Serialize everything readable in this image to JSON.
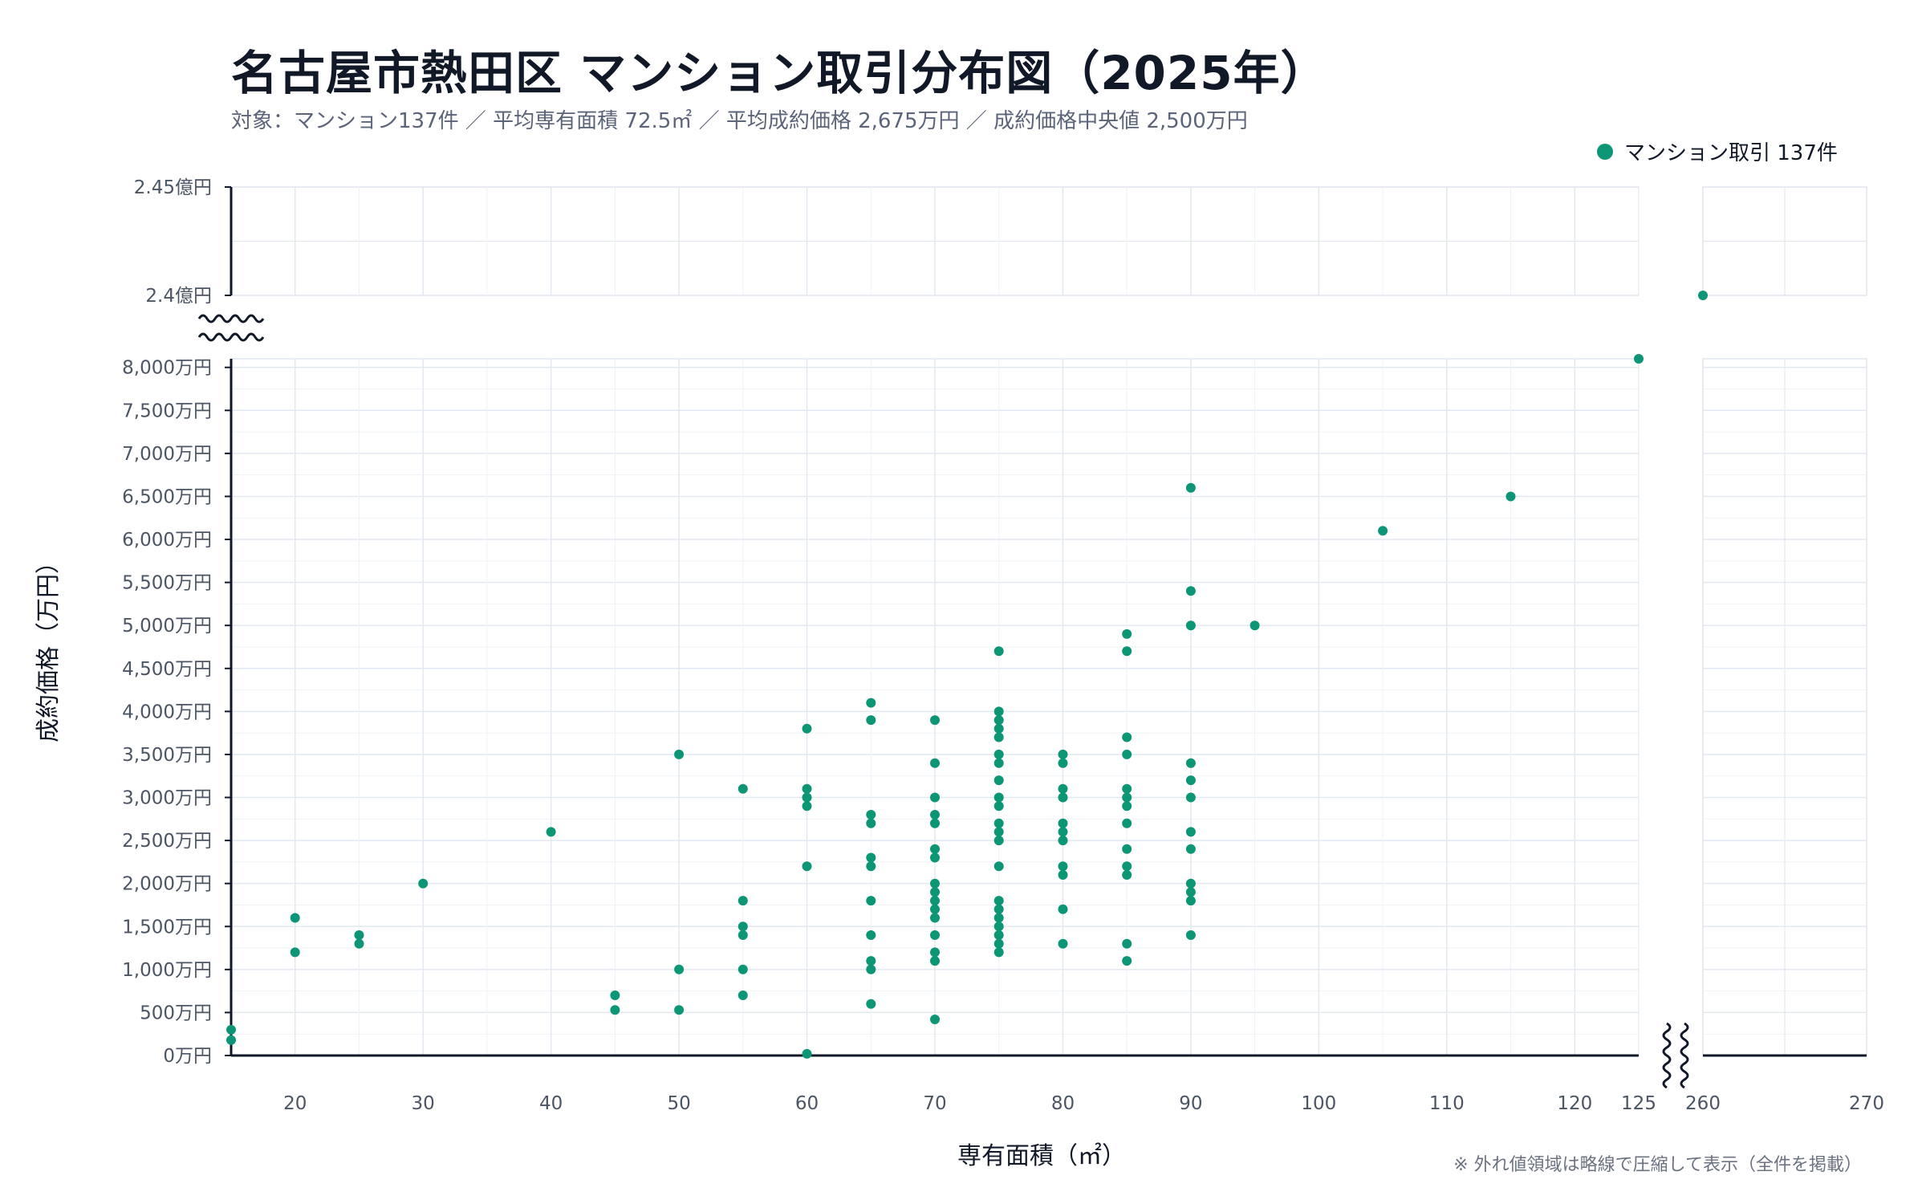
{
  "header": {
    "title": "名古屋市熱田区 マンション取引分布図（2025年）",
    "subtitle": "対象：マンション137件 ／ 平均専有面積 72.5㎡ ／ 平均成約価格 2,675万円 ／ 成約価格中央値 2,500万円"
  },
  "legend": {
    "label": "マンション取引 137件"
  },
  "colors": {
    "point": "#0d9676",
    "grid": "#e2e8f0",
    "axis": "#111827",
    "text": "#4b5563"
  },
  "chart_data": {
    "type": "scatter",
    "xlabel": "専有面積（㎡）",
    "ylabel": "成約価格（万円）",
    "note": "※ 外れ値領域は略線で圧縮して表示（全件を掲載）",
    "legend_position": "top-right",
    "grid": true,
    "x_main_range": [
      15,
      125
    ],
    "x_outlier_range": [
      260,
      270
    ],
    "y_main_range": [
      0,
      8100
    ],
    "y_outlier_range": [
      24000,
      24500
    ],
    "x_ticks": [
      20,
      30,
      40,
      50,
      60,
      70,
      80,
      90,
      100,
      110,
      120,
      125,
      260,
      270
    ],
    "y_ticks_main": [
      {
        "v": 0,
        "label": "0万円"
      },
      {
        "v": 500,
        "label": "500万円"
      },
      {
        "v": 1000,
        "label": "1,000万円"
      },
      {
        "v": 1500,
        "label": "1,500万円"
      },
      {
        "v": 2000,
        "label": "2,000万円"
      },
      {
        "v": 2500,
        "label": "2,500万円"
      },
      {
        "v": 3000,
        "label": "3,000万円"
      },
      {
        "v": 3500,
        "label": "3,500万円"
      },
      {
        "v": 4000,
        "label": "4,000万円"
      },
      {
        "v": 4500,
        "label": "4,500万円"
      },
      {
        "v": 5000,
        "label": "5,000万円"
      },
      {
        "v": 5500,
        "label": "5,500万円"
      },
      {
        "v": 6000,
        "label": "6,000万円"
      },
      {
        "v": 6500,
        "label": "6,500万円"
      },
      {
        "v": 7000,
        "label": "7,000万円"
      },
      {
        "v": 7500,
        "label": "7,500万円"
      },
      {
        "v": 8000,
        "label": "8,000万円"
      }
    ],
    "y_ticks_outlier": [
      {
        "v": 24000,
        "label": "2.4億円"
      },
      {
        "v": 24500,
        "label": "2.45億円"
      }
    ],
    "points": [
      [
        15,
        300
      ],
      [
        15,
        180
      ],
      [
        20,
        1600
      ],
      [
        20,
        1200
      ],
      [
        25,
        1400
      ],
      [
        25,
        1300
      ],
      [
        30,
        2000
      ],
      [
        40,
        2600
      ],
      [
        45,
        700
      ],
      [
        45,
        530
      ],
      [
        50,
        3500
      ],
      [
        50,
        1000
      ],
      [
        50,
        530
      ],
      [
        55,
        3100
      ],
      [
        55,
        1800
      ],
      [
        55,
        1500
      ],
      [
        55,
        1400
      ],
      [
        55,
        1000
      ],
      [
        55,
        700
      ],
      [
        60,
        3800
      ],
      [
        60,
        3100
      ],
      [
        60,
        3000
      ],
      [
        60,
        2900
      ],
      [
        60,
        2200
      ],
      [
        60,
        20
      ],
      [
        65,
        4100
      ],
      [
        65,
        3900
      ],
      [
        65,
        2800
      ],
      [
        65,
        2700
      ],
      [
        65,
        2300
      ],
      [
        65,
        2200
      ],
      [
        65,
        1800
      ],
      [
        65,
        1400
      ],
      [
        65,
        1100
      ],
      [
        65,
        1000
      ],
      [
        65,
        600
      ],
      [
        70,
        3900
      ],
      [
        70,
        3400
      ],
      [
        70,
        3000
      ],
      [
        70,
        2800
      ],
      [
        70,
        2700
      ],
      [
        70,
        2400
      ],
      [
        70,
        2300
      ],
      [
        70,
        2000
      ],
      [
        70,
        1900
      ],
      [
        70,
        1800
      ],
      [
        70,
        1700
      ],
      [
        70,
        1600
      ],
      [
        70,
        1400
      ],
      [
        70,
        1200
      ],
      [
        70,
        1100
      ],
      [
        70,
        420
      ],
      [
        75,
        4700
      ],
      [
        75,
        4000
      ],
      [
        75,
        3900
      ],
      [
        75,
        3800
      ],
      [
        75,
        3700
      ],
      [
        75,
        3500
      ],
      [
        75,
        3400
      ],
      [
        75,
        3200
      ],
      [
        75,
        3000
      ],
      [
        75,
        2900
      ],
      [
        75,
        2700
      ],
      [
        75,
        2600
      ],
      [
        75,
        2500
      ],
      [
        75,
        2200
      ],
      [
        75,
        1800
      ],
      [
        75,
        1700
      ],
      [
        75,
        1600
      ],
      [
        75,
        1500
      ],
      [
        75,
        1400
      ],
      [
        75,
        1300
      ],
      [
        75,
        1200
      ],
      [
        80,
        3500
      ],
      [
        80,
        3400
      ],
      [
        80,
        3100
      ],
      [
        80,
        3000
      ],
      [
        80,
        2700
      ],
      [
        80,
        2600
      ],
      [
        80,
        2500
      ],
      [
        80,
        2200
      ],
      [
        80,
        2100
      ],
      [
        80,
        1700
      ],
      [
        80,
        1300
      ],
      [
        85,
        4900
      ],
      [
        85,
        4700
      ],
      [
        85,
        3700
      ],
      [
        85,
        3500
      ],
      [
        85,
        3100
      ],
      [
        85,
        3000
      ],
      [
        85,
        2900
      ],
      [
        85,
        2700
      ],
      [
        85,
        2400
      ],
      [
        85,
        2200
      ],
      [
        85,
        2100
      ],
      [
        85,
        1300
      ],
      [
        85,
        1100
      ],
      [
        90,
        6600
      ],
      [
        90,
        5400
      ],
      [
        90,
        5000
      ],
      [
        90,
        3400
      ],
      [
        90,
        3200
      ],
      [
        90,
        3000
      ],
      [
        90,
        2600
      ],
      [
        90,
        2400
      ],
      [
        90,
        2000
      ],
      [
        90,
        1900
      ],
      [
        90,
        1800
      ],
      [
        90,
        1400
      ],
      [
        95,
        5000
      ],
      [
        105,
        6100
      ],
      [
        115,
        6500
      ],
      [
        125,
        8100
      ],
      [
        260,
        24000
      ]
    ]
  }
}
